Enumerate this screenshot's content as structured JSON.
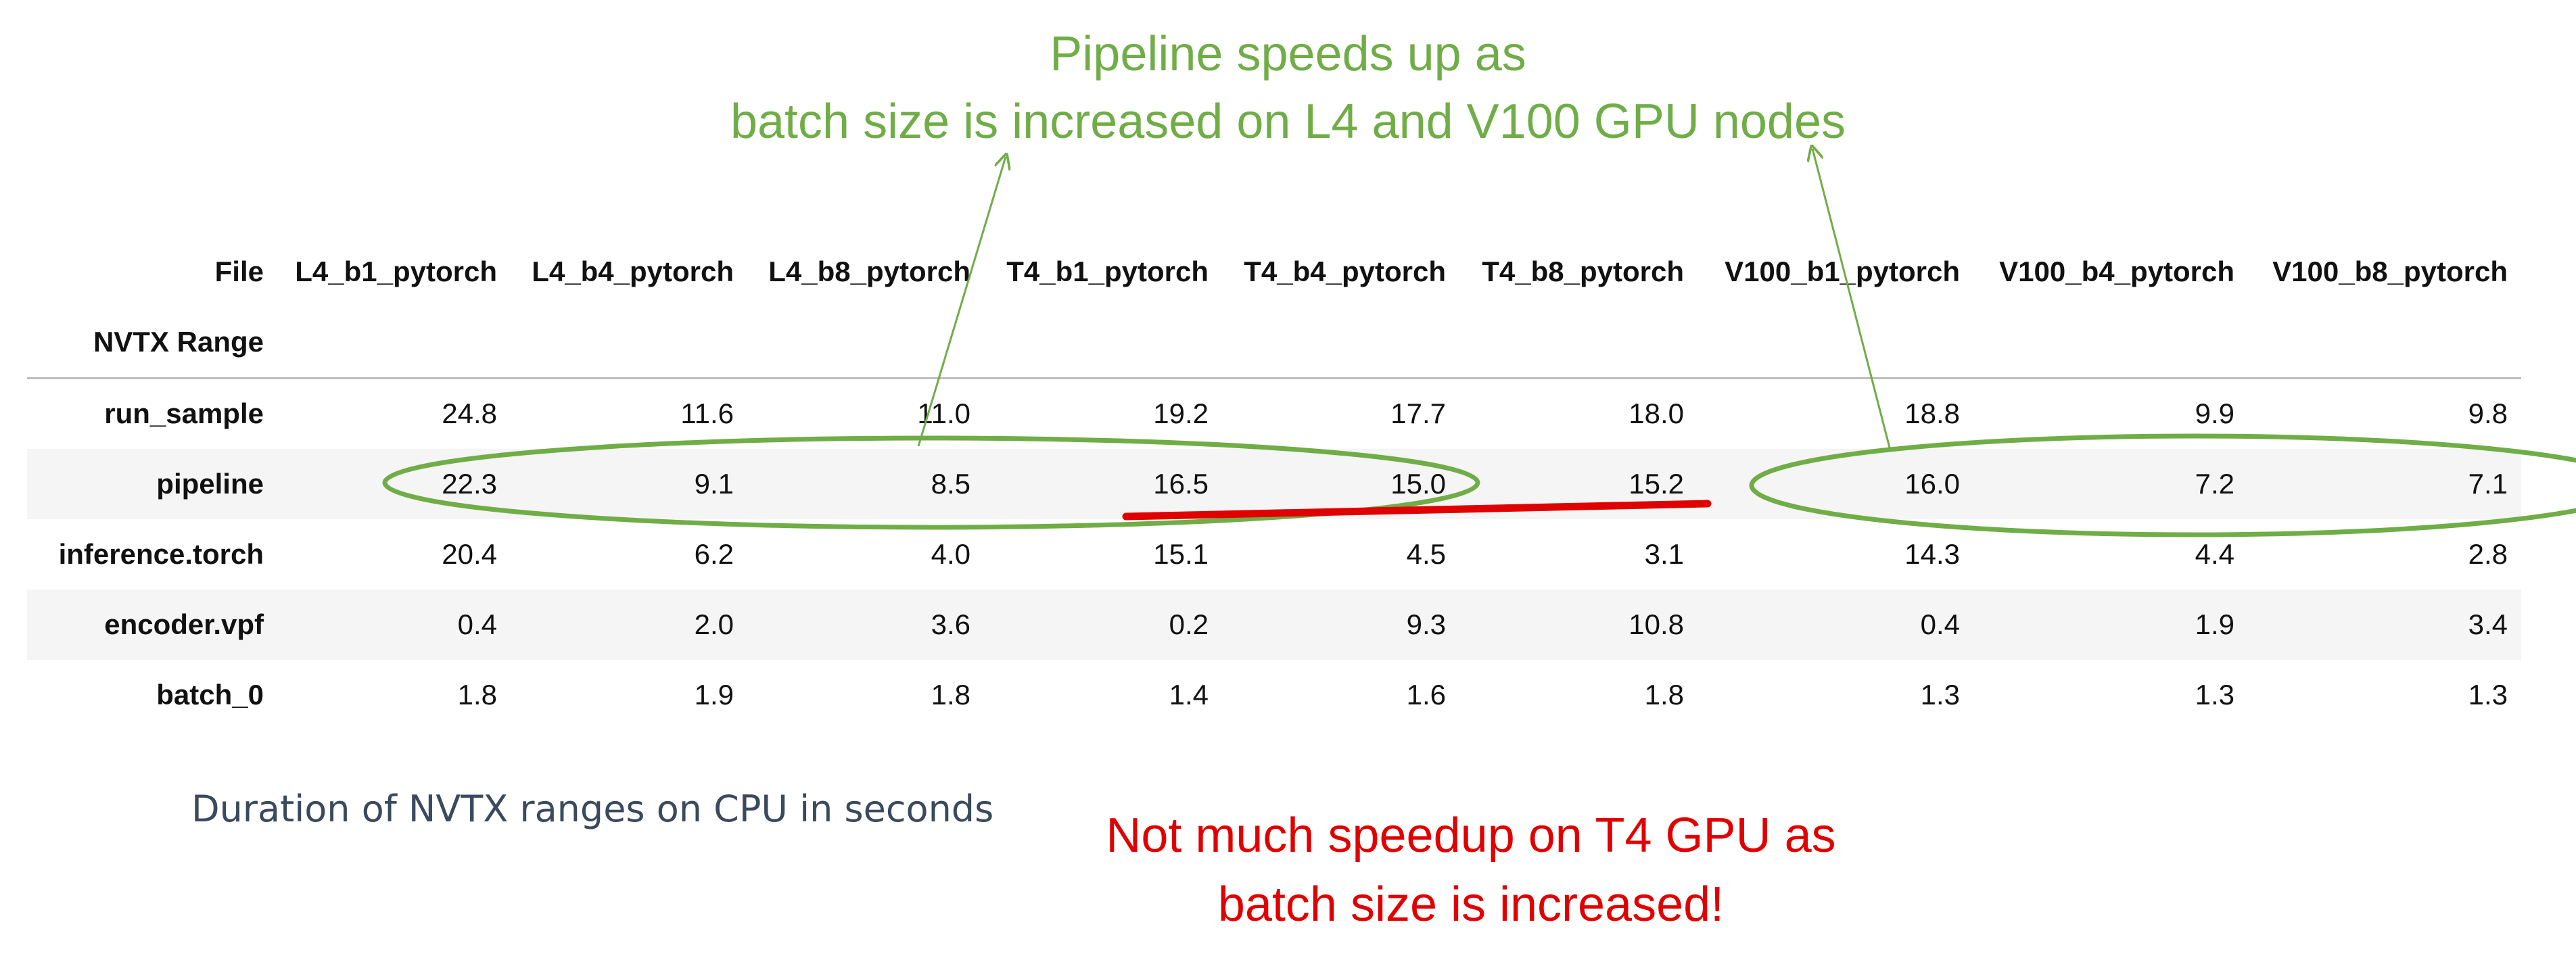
{
  "chart_data": {
    "type": "table",
    "header_label": "File",
    "index_label": "NVTX Range",
    "columns": [
      "L4_b1_pytorch",
      "L4_b4_pytorch",
      "L4_b8_pytorch",
      "T4_b1_pytorch",
      "T4_b4_pytorch",
      "T4_b8_pytorch",
      "V100_b1_pytorch",
      "V100_b4_pytorch",
      "V100_b8_pytorch"
    ],
    "rows": [
      {
        "label": "run_sample",
        "values": [
          "24.8",
          "11.6",
          "11.0",
          "19.2",
          "17.7",
          "18.0",
          "18.8",
          "9.9",
          "9.8"
        ]
      },
      {
        "label": "pipeline",
        "values": [
          "22.3",
          "9.1",
          "8.5",
          "16.5",
          "15.0",
          "15.2",
          "16.0",
          "7.2",
          "7.1"
        ]
      },
      {
        "label": "inference.torch",
        "values": [
          "20.4",
          "6.2",
          "4.0",
          "15.1",
          "4.5",
          "3.1",
          "14.3",
          "4.4",
          "2.8"
        ]
      },
      {
        "label": "encoder.vpf",
        "values": [
          "0.4",
          "2.0",
          "3.6",
          "0.2",
          "9.3",
          "10.8",
          "0.4",
          "1.9",
          "3.4"
        ]
      },
      {
        "label": "batch_0",
        "values": [
          "1.8",
          "1.9",
          "1.8",
          "1.4",
          "1.6",
          "1.8",
          "1.3",
          "1.3",
          "1.3"
        ]
      }
    ],
    "caption": "Duration of NVTX ranges on CPU in seconds"
  },
  "annotations": {
    "green": {
      "line1": "Pipeline speeds up as",
      "line2": "batch size is increased on L4 and V100 GPU nodes",
      "color": "#70ad47"
    },
    "red": {
      "line1": "Not much speedup on T4 GPU as",
      "line2": "batch size is increased!",
      "color": "#e00000"
    }
  }
}
